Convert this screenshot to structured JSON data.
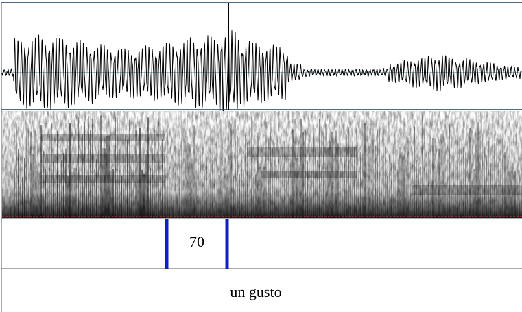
{
  "tiers": [
    {
      "label": "70"
    },
    {
      "label": "un gusto"
    }
  ]
}
